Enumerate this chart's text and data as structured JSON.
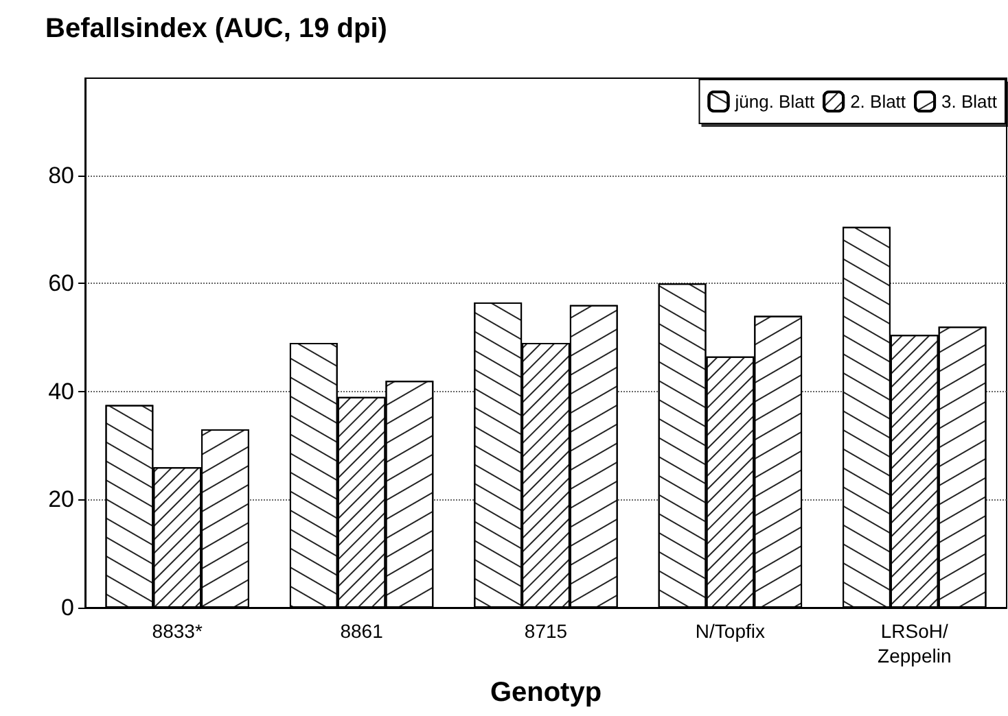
{
  "chart_data": {
    "type": "bar",
    "title": "Befallsindex (AUC, 19 dpi)",
    "xlabel": "Genotyp",
    "categories": [
      "8833*",
      "8861",
      "8715",
      "N/Topfix",
      "LRSoH/\nZeppelin"
    ],
    "series": [
      {
        "name": "jüng. Blatt",
        "color": "#ffffff",
        "values": [
          37.5,
          49,
          56.5,
          60,
          70.5
        ]
      },
      {
        "name": "2. Blatt",
        "color": "#ffffff",
        "values": [
          26,
          39,
          49,
          46.5,
          50.5
        ]
      },
      {
        "name": "3. Blatt",
        "color": "#ffffff",
        "values": [
          33,
          42,
          56,
          54,
          52
        ]
      }
    ],
    "ylim": [
      0,
      98
    ],
    "yticks": [
      0,
      20,
      40,
      60,
      80
    ],
    "grid": "y",
    "legend": "top right"
  }
}
